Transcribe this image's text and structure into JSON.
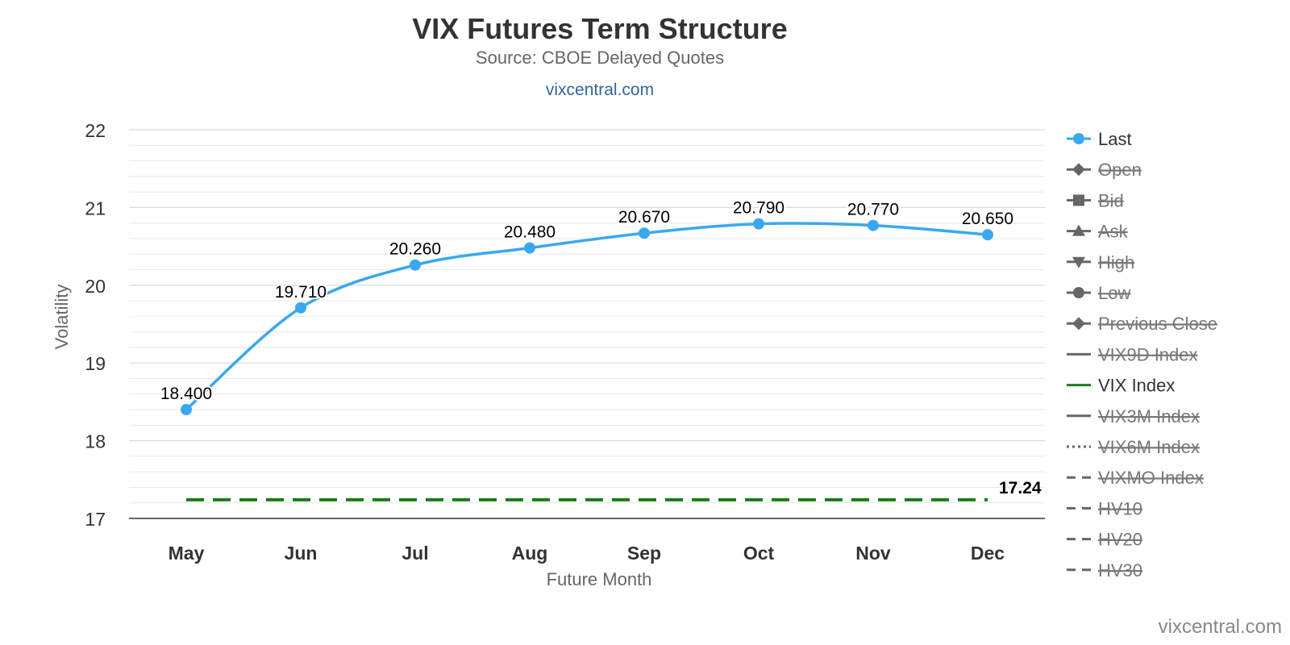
{
  "chart_data": {
    "type": "line",
    "title": "VIX Futures Term Structure",
    "subtitle": "Source: CBOE Delayed Quotes",
    "site_link": "vixcentral.com",
    "credits": "vixcentral.com",
    "xlabel": "Future Month",
    "ylabel": "Volatility",
    "ylim": [
      17,
      22
    ],
    "yticks": [
      17,
      18,
      19,
      20,
      21,
      22
    ],
    "grid": true,
    "legend_position": "right",
    "categories": [
      "May",
      "Jun",
      "Jul",
      "Aug",
      "Sep",
      "Oct",
      "Nov",
      "Dec"
    ],
    "series": [
      {
        "name": "Last",
        "values": [
          18.4,
          19.71,
          20.26,
          20.48,
          20.67,
          20.79,
          20.77,
          20.65
        ],
        "labels": [
          "18.400",
          "19.710",
          "20.260",
          "20.480",
          "20.670",
          "20.790",
          "20.770",
          "20.650"
        ],
        "color": "#3aa8ef",
        "visible": true
      },
      {
        "name": "VIX Index",
        "value": 17.24,
        "label": "17.24",
        "color": "#1a7d1a",
        "visible": true
      }
    ],
    "legend": [
      {
        "name": "Last",
        "symbol": "circle",
        "line": "solid",
        "color": "#3aa8ef",
        "visible": true
      },
      {
        "name": "Open",
        "symbol": "diamond",
        "line": "solid",
        "color": "#666666",
        "visible": false
      },
      {
        "name": "Bid",
        "symbol": "square",
        "line": "solid",
        "color": "#666666",
        "visible": false
      },
      {
        "name": "Ask",
        "symbol": "triangle",
        "line": "solid",
        "color": "#666666",
        "visible": false
      },
      {
        "name": "High",
        "symbol": "triangle-down",
        "line": "solid",
        "color": "#666666",
        "visible": false
      },
      {
        "name": "Low",
        "symbol": "circle",
        "line": "solid",
        "color": "#666666",
        "visible": false
      },
      {
        "name": "Previous Close",
        "symbol": "diamond",
        "line": "solid",
        "color": "#666666",
        "visible": false
      },
      {
        "name": "VIX9D Index",
        "symbol": "none",
        "line": "solid",
        "color": "#666666",
        "visible": false
      },
      {
        "name": "VIX Index",
        "symbol": "none",
        "line": "solid",
        "color": "#1a7d1a",
        "visible": true
      },
      {
        "name": "VIX3M Index",
        "symbol": "none",
        "line": "solid",
        "color": "#666666",
        "visible": false
      },
      {
        "name": "VIX6M Index",
        "symbol": "none",
        "line": "dotted",
        "color": "#666666",
        "visible": false
      },
      {
        "name": "VIXMO Index",
        "symbol": "none",
        "line": "dashed",
        "color": "#666666",
        "visible": false
      },
      {
        "name": "HV10",
        "symbol": "none",
        "line": "dashed",
        "color": "#666666",
        "visible": false
      },
      {
        "name": "HV20",
        "symbol": "none",
        "line": "dashed",
        "color": "#666666",
        "visible": false
      },
      {
        "name": "HV30",
        "symbol": "none",
        "line": "dashed",
        "color": "#666666",
        "visible": false
      }
    ]
  }
}
